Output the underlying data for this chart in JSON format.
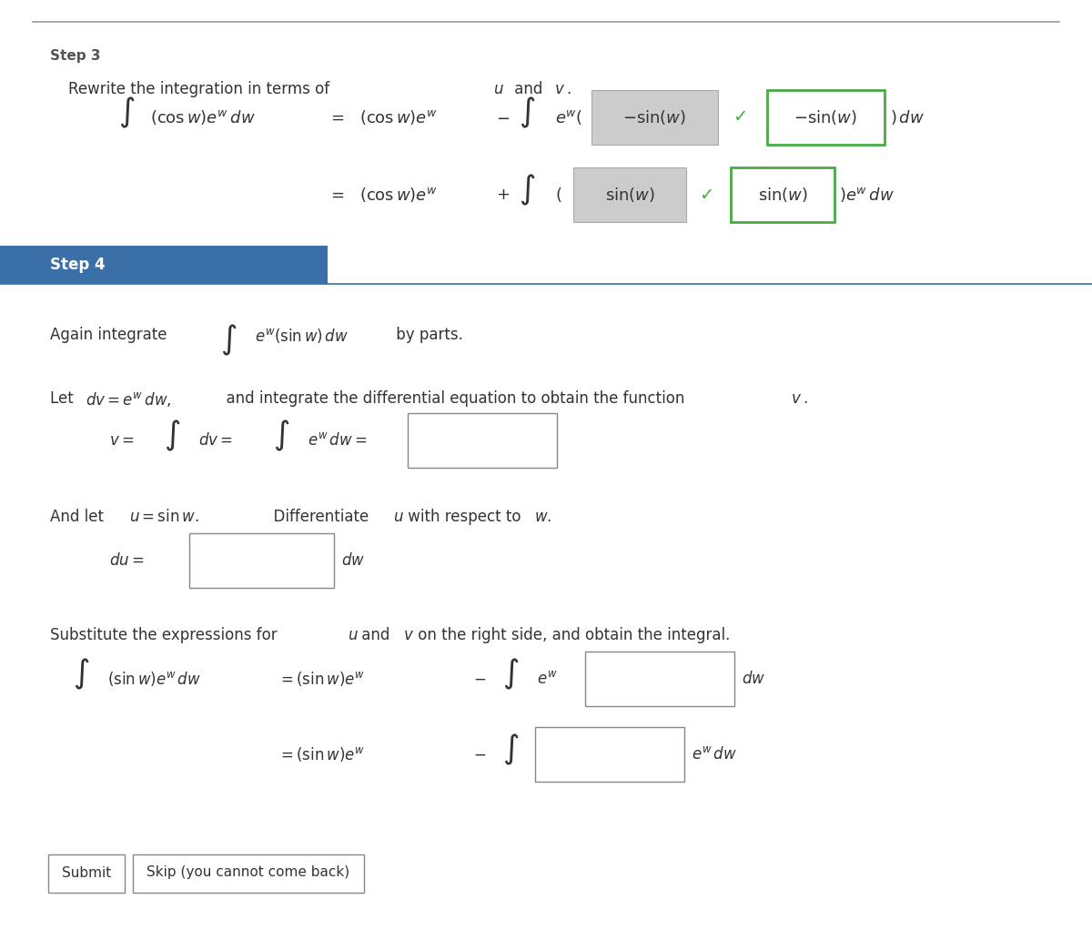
{
  "bg_color": "#ffffff",
  "top_line_color": "#999999",
  "step3_label": "Step 3",
  "step3_color": "#555555",
  "step4_label": "Step 4",
  "step4_bg": "#3a6fa8",
  "step4_text_color": "#ffffff",
  "step4_line_color": "#3a6fa8",
  "rewrite_text": "Rewrite the integration in terms of ",
  "uv_text": "u",
  "and_text": " and ",
  "v_text": "v",
  "period": ".",
  "gray_box_color": "#cccccc",
  "green_box_color": "#4aaa44",
  "checkmark_color": "#4aaa44",
  "input_box_color": "#ffffff",
  "input_box_border": "#888888",
  "font_size_step": 11,
  "font_size_body": 12,
  "font_size_math": 13,
  "font_size_math_large": 15
}
